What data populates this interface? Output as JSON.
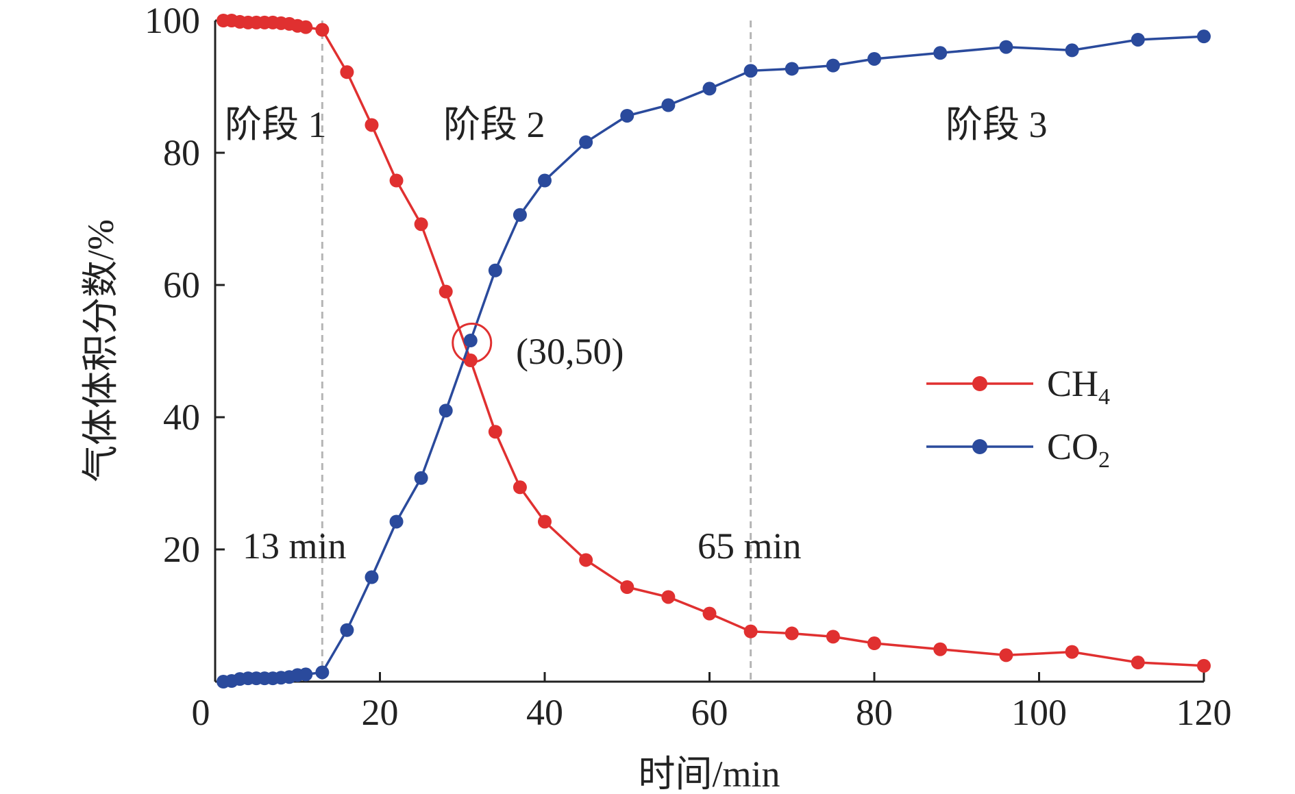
{
  "chart_data": {
    "type": "line",
    "xlabel": "时间/min",
    "ylabel": "气体体积分数/%",
    "xlim": [
      0,
      120
    ],
    "ylim": [
      0,
      100
    ],
    "x_ticks": [
      "20",
      "40",
      "60",
      "80",
      "100",
      "120"
    ],
    "y_ticks": [
      "20",
      "40",
      "60",
      "80",
      "100"
    ],
    "origin_label": "0",
    "grid": false,
    "legend_position": "center-right",
    "series": [
      {
        "name": "CH4",
        "label_main": "CH",
        "label_sub": "4",
        "color": "#e03030",
        "x": [
          1,
          2,
          3,
          4,
          5,
          6,
          7,
          8,
          9,
          10,
          11,
          13,
          16,
          19,
          22,
          25,
          28,
          31,
          34,
          37,
          40,
          45,
          50,
          55,
          60,
          65,
          70,
          75,
          80,
          88,
          96,
          104,
          112,
          120
        ],
        "y": [
          100,
          100,
          99.8,
          99.7,
          99.7,
          99.7,
          99.7,
          99.6,
          99.5,
          99.2,
          99.0,
          98.6,
          92.2,
          84.2,
          75.8,
          69.2,
          59.0,
          48.6,
          37.8,
          29.4,
          24.2,
          18.4,
          14.3,
          12.8,
          10.3,
          7.6,
          7.3,
          6.8,
          5.8,
          4.9,
          4.0,
          4.5,
          2.9,
          2.4
        ]
      },
      {
        "name": "CO2",
        "label_main": "CO",
        "label_sub": "2",
        "color": "#2a4a9c",
        "x": [
          1,
          2,
          3,
          4,
          5,
          6,
          7,
          8,
          9,
          10,
          11,
          13,
          16,
          19,
          22,
          25,
          28,
          31,
          34,
          37,
          40,
          45,
          50,
          55,
          60,
          65,
          70,
          75,
          80,
          88,
          96,
          104,
          112,
          120
        ],
        "y": [
          0,
          0.1,
          0.4,
          0.5,
          0.5,
          0.5,
          0.5,
          0.6,
          0.7,
          1.0,
          1.1,
          1.4,
          7.8,
          15.8,
          24.2,
          30.8,
          41.0,
          51.6,
          62.2,
          70.6,
          75.8,
          81.6,
          85.6,
          87.2,
          89.7,
          92.4,
          92.7,
          93.2,
          94.2,
          95.1,
          96.0,
          95.5,
          97.1,
          97.6
        ]
      }
    ],
    "vlines": [
      {
        "x": 13,
        "label": "13 min"
      },
      {
        "x": 65,
        "label": "65 min"
      }
    ],
    "stages": [
      "阶段 1",
      "阶段 2",
      "阶段 3"
    ],
    "intersection": {
      "x": 30,
      "y": 50,
      "label": "(30,50)"
    }
  }
}
